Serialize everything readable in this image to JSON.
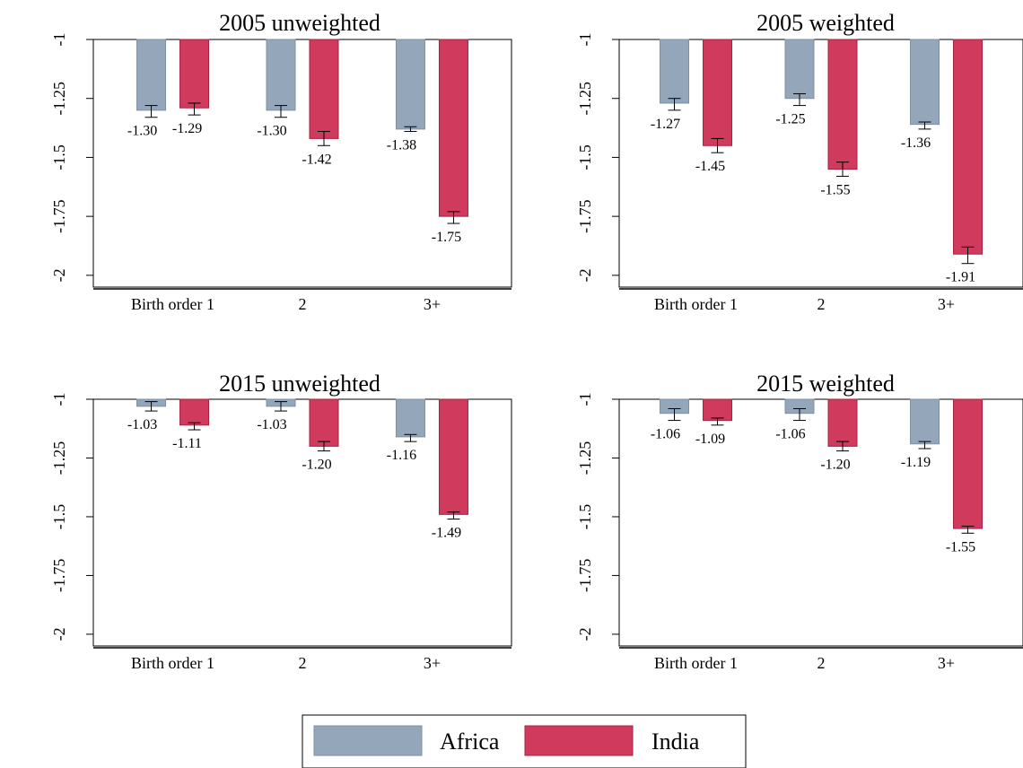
{
  "colors": {
    "africa": "#94a6ba",
    "africa_stroke": "#7f90a3",
    "india": "#cf3a5d",
    "india_stroke": "#a8213f",
    "axis": "#000000"
  },
  "legend": {
    "position": "bottom-center",
    "items": [
      {
        "name": "Africa",
        "color": "#94a6ba"
      },
      {
        "name": "India",
        "color": "#cf3a5d"
      }
    ]
  },
  "chart_data": [
    {
      "type": "bar",
      "title": "2005 unweighted",
      "categories": [
        "Birth order 1",
        "2",
        "3+"
      ],
      "baseline": -1,
      "ylim": [
        -2.05,
        -1
      ],
      "yticks": [
        -1,
        -1.25,
        -1.5,
        -1.75,
        -2
      ],
      "ytick_labels": [
        "-1",
        "-1.25",
        "-1.5",
        "-1.75",
        "-2"
      ],
      "series": [
        {
          "name": "Africa",
          "values": [
            -1.3,
            -1.3,
            -1.38
          ],
          "labels": [
            "-1.30",
            "-1.30",
            "-1.38"
          ],
          "ci": [
            [
              -1.28,
              -1.33
            ],
            [
              -1.28,
              -1.33
            ],
            [
              -1.37,
              -1.39
            ]
          ]
        },
        {
          "name": "India",
          "values": [
            -1.29,
            -1.42,
            -1.75
          ],
          "labels": [
            "-1.29",
            "-1.42",
            "-1.75"
          ],
          "ci": [
            [
              -1.27,
              -1.32
            ],
            [
              -1.39,
              -1.45
            ],
            [
              -1.73,
              -1.78
            ]
          ]
        }
      ]
    },
    {
      "type": "bar",
      "title": "2005 weighted",
      "categories": [
        "Birth order 1",
        "2",
        "3+"
      ],
      "baseline": -1,
      "ylim": [
        -2.05,
        -1
      ],
      "yticks": [
        -1,
        -1.25,
        -1.5,
        -1.75,
        -2
      ],
      "ytick_labels": [
        "-1",
        "-1.25",
        "-1.5",
        "-1.75",
        "-2"
      ],
      "series": [
        {
          "name": "Africa",
          "values": [
            -1.27,
            -1.25,
            -1.36
          ],
          "labels": [
            "-1.27",
            "-1.25",
            "-1.36"
          ],
          "ci": [
            [
              -1.25,
              -1.3
            ],
            [
              -1.23,
              -1.28
            ],
            [
              -1.35,
              -1.38
            ]
          ]
        },
        {
          "name": "India",
          "values": [
            -1.45,
            -1.55,
            -1.91
          ],
          "labels": [
            "-1.45",
            "-1.55",
            "-1.91"
          ],
          "ci": [
            [
              -1.42,
              -1.48
            ],
            [
              -1.52,
              -1.58
            ],
            [
              -1.88,
              -1.95
            ]
          ]
        }
      ]
    },
    {
      "type": "bar",
      "title": "2015 unweighted",
      "categories": [
        "Birth order 1",
        "2",
        "3+"
      ],
      "baseline": -1,
      "ylim": [
        -2.05,
        -1
      ],
      "yticks": [
        -1,
        -1.25,
        -1.5,
        -1.75,
        -2
      ],
      "ytick_labels": [
        "-1",
        "-1.25",
        "-1.5",
        "-1.75",
        "-2"
      ],
      "series": [
        {
          "name": "Africa",
          "values": [
            -1.03,
            -1.03,
            -1.16
          ],
          "labels": [
            "-1.03",
            "-1.03",
            "-1.16"
          ],
          "ci": [
            [
              -1.01,
              -1.05
            ],
            [
              -1.01,
              -1.05
            ],
            [
              -1.15,
              -1.18
            ]
          ]
        },
        {
          "name": "India",
          "values": [
            -1.11,
            -1.2,
            -1.49
          ],
          "labels": [
            "-1.11",
            "-1.20",
            "-1.49"
          ],
          "ci": [
            [
              -1.1,
              -1.13
            ],
            [
              -1.18,
              -1.22
            ],
            [
              -1.48,
              -1.51
            ]
          ]
        }
      ]
    },
    {
      "type": "bar",
      "title": "2015 weighted",
      "categories": [
        "Birth order 1",
        "2",
        "3+"
      ],
      "baseline": -1,
      "ylim": [
        -2.05,
        -1
      ],
      "yticks": [
        -1,
        -1.25,
        -1.5,
        -1.75,
        -2
      ],
      "ytick_labels": [
        "-1",
        "-1.25",
        "-1.5",
        "-1.75",
        "-2"
      ],
      "series": [
        {
          "name": "Africa",
          "values": [
            -1.06,
            -1.06,
            -1.19
          ],
          "labels": [
            "-1.06",
            "-1.06",
            "-1.19"
          ],
          "ci": [
            [
              -1.04,
              -1.09
            ],
            [
              -1.04,
              -1.09
            ],
            [
              -1.18,
              -1.21
            ]
          ]
        },
        {
          "name": "India",
          "values": [
            -1.09,
            -1.2,
            -1.55
          ],
          "labels": [
            "-1.09",
            "-1.20",
            "-1.55"
          ],
          "ci": [
            [
              -1.08,
              -1.11
            ],
            [
              -1.18,
              -1.22
            ],
            [
              -1.54,
              -1.57
            ]
          ]
        }
      ]
    }
  ]
}
